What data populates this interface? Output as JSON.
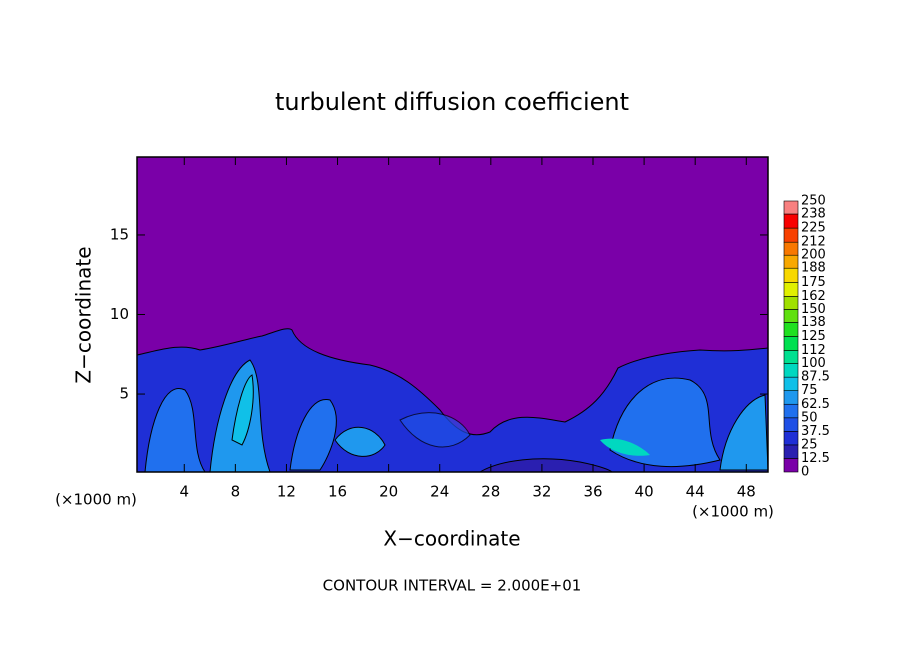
{
  "chart_data": {
    "type": "contour",
    "title": "turbulent diffusion coefficient",
    "xlabel": "X−coordinate",
    "ylabel": "Z−coordinate",
    "y_unit_label": "(×1000 m)",
    "x_unit_label": "(×1000 m)",
    "annotation": "CONTOUR INTERVAL = 2.000E+01",
    "xlim": [
      0.3,
      49.7
    ],
    "xticks": [
      4,
      8,
      12,
      16,
      20,
      24,
      28,
      32,
      36,
      40,
      44,
      48
    ],
    "ylim": [
      0.1,
      19.9
    ],
    "yticks": [
      5,
      10,
      15
    ],
    "colorbar": {
      "levels": [
        0,
        12.5,
        25,
        37.5,
        50,
        62.5,
        75,
        87.5,
        100,
        112,
        125,
        138,
        150,
        162,
        175,
        188,
        200,
        212,
        225,
        238,
        250
      ],
      "colors": [
        "#7a00a8",
        "#2a1fb0",
        "#1f2fd6",
        "#1f50e6",
        "#2070ee",
        "#1f98ee",
        "#10c0e8",
        "#00d8c0",
        "#00e090",
        "#00e050",
        "#20e020",
        "#60e010",
        "#a0e000",
        "#e0f000",
        "#f8d800",
        "#f8a800",
        "#f87800",
        "#f84000",
        "#f80000",
        "#f88080"
      ]
    }
  }
}
